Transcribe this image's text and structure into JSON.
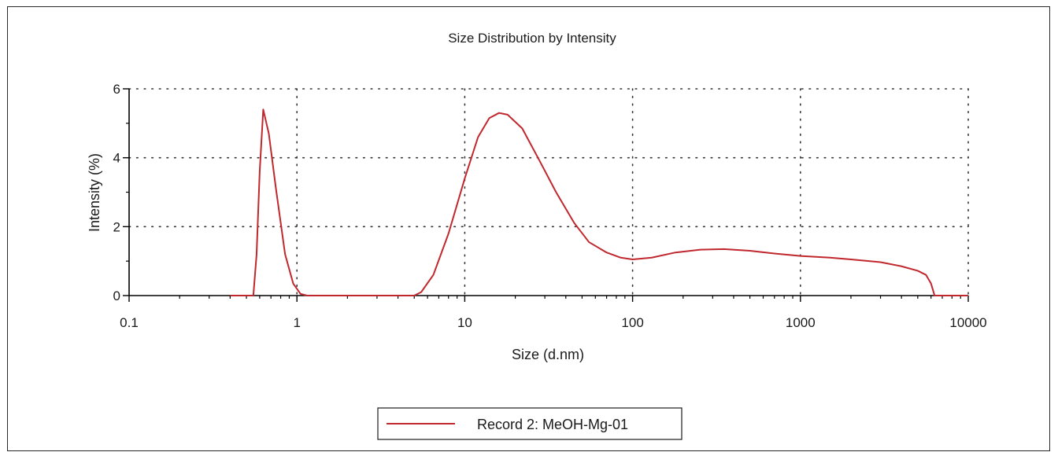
{
  "chart_data": {
    "type": "line",
    "title": "Size Distribution by Intensity",
    "xlabel": "Size (d.nm)",
    "ylabel": "Intensity (%)",
    "x_scale": "log",
    "xlim": [
      0.1,
      10000
    ],
    "ylim": [
      0,
      6
    ],
    "x_ticks": [
      0.1,
      1,
      10,
      100,
      1000,
      10000
    ],
    "x_tick_labels": [
      "0.1",
      "1",
      "10",
      "100",
      "1000",
      "10000"
    ],
    "y_ticks": [
      0,
      2,
      4,
      6
    ],
    "y_tick_labels": [
      "0",
      "2",
      "4",
      "6"
    ],
    "grid": true,
    "grid_style": "dotted",
    "legend_position": "bottom-center",
    "series": [
      {
        "name": "Record 2: MeOH-Mg-01",
        "color": "#c0282e",
        "points": [
          [
            0.4,
            0
          ],
          [
            0.55,
            0
          ],
          [
            0.575,
            1.2
          ],
          [
            0.6,
            3.6
          ],
          [
            0.63,
            5.4
          ],
          [
            0.68,
            4.7
          ],
          [
            0.75,
            3.1
          ],
          [
            0.85,
            1.2
          ],
          [
            0.95,
            0.35
          ],
          [
            1.05,
            0.05
          ],
          [
            1.15,
            0
          ],
          [
            5.0,
            0
          ],
          [
            5.5,
            0.1
          ],
          [
            6.5,
            0.6
          ],
          [
            8.0,
            1.8
          ],
          [
            10,
            3.4
          ],
          [
            12,
            4.6
          ],
          [
            14,
            5.15
          ],
          [
            16,
            5.3
          ],
          [
            18,
            5.25
          ],
          [
            22,
            4.85
          ],
          [
            28,
            3.9
          ],
          [
            35,
            3.0
          ],
          [
            45,
            2.1
          ],
          [
            55,
            1.55
          ],
          [
            70,
            1.25
          ],
          [
            85,
            1.1
          ],
          [
            100,
            1.05
          ],
          [
            130,
            1.1
          ],
          [
            180,
            1.25
          ],
          [
            250,
            1.33
          ],
          [
            350,
            1.35
          ],
          [
            500,
            1.3
          ],
          [
            700,
            1.22
          ],
          [
            1000,
            1.15
          ],
          [
            1500,
            1.1
          ],
          [
            2000,
            1.05
          ],
          [
            3000,
            0.97
          ],
          [
            4000,
            0.85
          ],
          [
            5000,
            0.72
          ],
          [
            5600,
            0.6
          ],
          [
            6000,
            0.35
          ],
          [
            6300,
            0
          ],
          [
            8000,
            0
          ],
          [
            10000,
            0
          ]
        ]
      }
    ]
  }
}
